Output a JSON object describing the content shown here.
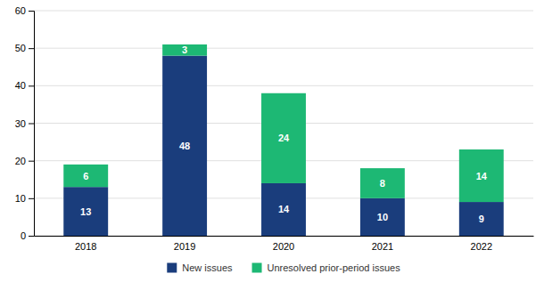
{
  "chart_data": {
    "type": "bar",
    "stacked": true,
    "categories": [
      "2018",
      "2019",
      "2020",
      "2021",
      "2022"
    ],
    "series": [
      {
        "name": "New issues",
        "color": "#1a3d7c",
        "values": [
          13,
          48,
          14,
          10,
          9
        ]
      },
      {
        "name": "Unresolved prior-period issues",
        "color": "#1db874",
        "values": [
          6,
          3,
          24,
          8,
          14
        ]
      }
    ],
    "ylim": [
      0,
      60
    ],
    "yticks": [
      0,
      10,
      20,
      30,
      40,
      50,
      60
    ],
    "grid": true,
    "data_labels": true,
    "legend": "bottom"
  }
}
